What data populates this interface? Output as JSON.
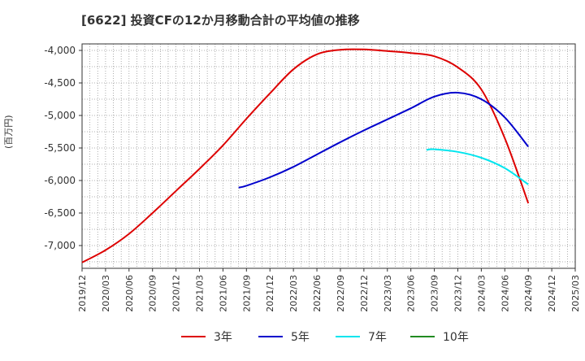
{
  "chart_data": {
    "type": "line",
    "title": "[6622]  投資CFの12か月移動合計の平均値の推移",
    "ylabel": "(百万円)",
    "xlabel": "",
    "ylim": [
      -7350,
      -3900
    ],
    "yticks": [
      -4000,
      -4500,
      -5000,
      -5500,
      -6000,
      -6500,
      -7000
    ],
    "ytick_labels": [
      "-4,000",
      "-4,500",
      "-5,000",
      "-5,500",
      "-6,000",
      "-6,500",
      "-7,000"
    ],
    "xtick_labels": [
      "2019/12",
      "2020/03",
      "2020/06",
      "2020/09",
      "2020/12",
      "2021/03",
      "2021/06",
      "2021/09",
      "2021/12",
      "2022/03",
      "2022/06",
      "2022/09",
      "2022/12",
      "2023/03",
      "2023/06",
      "2023/09",
      "2023/12",
      "2024/03",
      "2024/06",
      "2024/09",
      "2024/12",
      "2025/03"
    ],
    "grid": true,
    "legend_position": "bottom",
    "series": [
      {
        "name": "3年",
        "color": "#dd0000",
        "x": [
          "2019/12",
          "2020/03",
          "2020/06",
          "2020/09",
          "2020/12",
          "2021/03",
          "2021/06",
          "2021/09",
          "2021/12",
          "2022/03",
          "2022/06",
          "2022/09",
          "2022/12",
          "2023/03",
          "2023/06",
          "2023/09",
          "2023/12",
          "2024/03",
          "2024/06",
          "2024/09"
        ],
        "values": [
          -7260,
          -7070,
          -6820,
          -6500,
          -6160,
          -5820,
          -5460,
          -5050,
          -4660,
          -4290,
          -4060,
          -3990,
          -3985,
          -4010,
          -4040,
          -4090,
          -4260,
          -4600,
          -5350,
          -6350
        ]
      },
      {
        "name": "5年",
        "color": "#0000cc",
        "x": [
          "2021/08",
          "2021/09",
          "2021/12",
          "2022/03",
          "2022/06",
          "2022/09",
          "2022/12",
          "2023/03",
          "2023/06",
          "2023/09",
          "2023/12",
          "2024/03",
          "2024/06",
          "2024/09"
        ],
        "values": [
          -6110,
          -6080,
          -5950,
          -5790,
          -5600,
          -5410,
          -5230,
          -5060,
          -4890,
          -4710,
          -4650,
          -4750,
          -5030,
          -5480
        ]
      },
      {
        "name": "7年",
        "color": "#00e5ee",
        "x": [
          "2023/08",
          "2023/09",
          "2023/12",
          "2024/03",
          "2024/06",
          "2024/09"
        ],
        "values": [
          -5530,
          -5520,
          -5560,
          -5650,
          -5810,
          -6060
        ]
      },
      {
        "name": "10年",
        "color": "#228b22",
        "x": [],
        "values": []
      }
    ]
  }
}
